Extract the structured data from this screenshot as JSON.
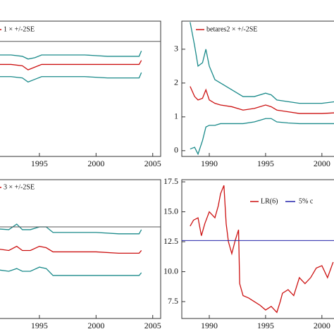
{
  "chart_data": [
    {
      "type": "line",
      "xlim": [
        1991.4,
        2005.7
      ],
      "ylim": [
        0,
        10
      ],
      "xticks": [
        1995,
        2000,
        2005
      ],
      "hline": {
        "value": 8.5,
        "color": "#555555"
      },
      "series": [
        {
          "name": "1 × +/-2SE",
          "color": "#cc1111",
          "x": [
            1991.4,
            1992.5,
            1993.5,
            1994,
            1994.6,
            1995.2,
            1997,
            1999,
            2001,
            2003.8,
            2004
          ],
          "values": [
            6.8,
            6.8,
            6.7,
            6.4,
            6.6,
            6.8,
            6.8,
            6.8,
            6.8,
            6.8,
            7.1
          ]
        },
        {
          "color": "#1a8a8a",
          "x": [
            1991.4,
            1992.5,
            1993.5,
            1994,
            1994.6,
            1995.2,
            1997,
            1999,
            2001,
            2003.8,
            2004
          ],
          "values": [
            7.5,
            7.5,
            7.4,
            7.2,
            7.3,
            7.5,
            7.5,
            7.5,
            7.4,
            7.4,
            7.8
          ]
        },
        {
          "color": "#1a8a8a",
          "x": [
            1991.4,
            1992.5,
            1993.5,
            1994,
            1994.6,
            1995.2,
            1997,
            1999,
            2001,
            2003.8,
            2004
          ],
          "values": [
            5.9,
            5.9,
            5.8,
            5.5,
            5.7,
            5.9,
            5.9,
            5.9,
            5.8,
            5.8,
            6.2
          ]
        }
      ]
    },
    {
      "type": "line",
      "xlim": [
        1987.56,
        2001.2
      ],
      "ylim": [
        -0.17,
        3.83
      ],
      "xticks": [
        1990,
        1995,
        2000
      ],
      "yticks": [
        0,
        1,
        2,
        3
      ],
      "series": [
        {
          "name": "betares2 × +/-2SE",
          "color": "#cc1111",
          "x": [
            1988.3,
            1988.7,
            1989,
            1989.4,
            1989.7,
            1990,
            1990.5,
            1991,
            1992,
            1993,
            1994,
            1995,
            1995.5,
            1996,
            1997,
            1998,
            2000,
            2001.2
          ],
          "values": [
            1.9,
            1.6,
            1.5,
            1.55,
            1.8,
            1.5,
            1.4,
            1.35,
            1.3,
            1.2,
            1.25,
            1.35,
            1.3,
            1.2,
            1.15,
            1.1,
            1.1,
            1.12
          ]
        },
        {
          "color": "#1a8a8a",
          "x": [
            1988.3,
            1988.7,
            1989,
            1989.4,
            1989.7,
            1990,
            1990.5,
            1991,
            1992,
            1993,
            1994,
            1995,
            1995.5,
            1996,
            1997,
            1998,
            2000,
            2001.2
          ],
          "values": [
            3.8,
            3.1,
            2.5,
            2.6,
            3.0,
            2.5,
            2.1,
            2.0,
            1.8,
            1.6,
            1.6,
            1.7,
            1.65,
            1.5,
            1.45,
            1.4,
            1.4,
            1.45
          ]
        },
        {
          "color": "#1a8a8a",
          "x": [
            1988.3,
            1988.7,
            1989,
            1989.4,
            1989.7,
            1990,
            1990.5,
            1991,
            1992,
            1993,
            1994,
            1995,
            1995.5,
            1996,
            1997,
            1998,
            2000,
            2001.2
          ],
          "values": [
            0.05,
            0.1,
            -0.1,
            0.3,
            0.7,
            0.75,
            0.75,
            0.8,
            0.8,
            0.8,
            0.85,
            0.95,
            0.95,
            0.85,
            0.82,
            0.8,
            0.8,
            0.8
          ]
        }
      ]
    },
    {
      "type": "line",
      "xlim": [
        1991.4,
        2005.7
      ],
      "ylim": [
        0,
        10
      ],
      "xticks": [
        1995,
        2000,
        2005
      ],
      "hline": {
        "value": 6.6,
        "color": "#555555"
      },
      "series": [
        {
          "name": "3 × +/-2SE",
          "color": "#cc1111",
          "x": [
            1991.4,
            1992.3,
            1993,
            1993.5,
            1994.2,
            1995,
            1995.6,
            1996.2,
            1998,
            2000,
            2002,
            2003.8,
            2004
          ],
          "values": [
            5.0,
            4.9,
            5.2,
            4.9,
            4.9,
            5.2,
            5.1,
            4.8,
            4.8,
            4.8,
            4.7,
            4.7,
            4.9
          ]
        },
        {
          "color": "#1a8a8a",
          "x": [
            1991.4,
            1992.3,
            1993,
            1993.5,
            1994.2,
            1995,
            1995.6,
            1996.2,
            1998,
            2000,
            2002,
            2003.8,
            2004
          ],
          "values": [
            6.45,
            6.4,
            6.8,
            6.4,
            6.4,
            6.6,
            6.6,
            6.2,
            6.2,
            6.2,
            6.1,
            6.1,
            6.4
          ]
        },
        {
          "color": "#1a8a8a",
          "x": [
            1991.4,
            1992.3,
            1993,
            1993.5,
            1994.2,
            1995,
            1995.6,
            1996.2,
            1998,
            2000,
            2002,
            2003.8,
            2004
          ],
          "values": [
            3.5,
            3.4,
            3.6,
            3.4,
            3.4,
            3.7,
            3.6,
            3.1,
            3.1,
            3.1,
            3.1,
            3.1,
            3.3
          ]
        }
      ]
    },
    {
      "type": "line",
      "xlim": [
        1987.56,
        2001.2
      ],
      "ylim": [
        6.09,
        17.68
      ],
      "xticks": [
        1990,
        1995,
        2000
      ],
      "yticks": [
        {
          "value": 7.5,
          "label": "7.5"
        },
        {
          "value": 10,
          "label": "10.0"
        },
        {
          "value": 12.5,
          "label": "12.5"
        },
        {
          "value": 15,
          "label": "15.0"
        },
        {
          "value": 17.5,
          "label": "17.5"
        }
      ],
      "hline": {
        "name": "5% c",
        "value": 12.6,
        "color": "#2222aa"
      },
      "series": [
        {
          "name": "LR(6)",
          "color": "#cc1111",
          "x": [
            1988.3,
            1988.6,
            1989,
            1989.3,
            1989.6,
            1990,
            1990.5,
            1990.8,
            1991,
            1991.3,
            1991.5,
            1991.7,
            1992,
            1992.3,
            1992.6,
            1992.7,
            1993,
            1993.5,
            1994,
            1994.5,
            1995,
            1995.5,
            1996,
            1996.3,
            1996.5,
            1997,
            1997.5,
            1998,
            1998.5,
            1999,
            1999.5,
            2000,
            2000.5,
            2001
          ],
          "values": [
            13.8,
            14.3,
            14.5,
            13.0,
            14.0,
            15.0,
            14.5,
            15.5,
            16.5,
            17.2,
            14.0,
            12.5,
            11.5,
            12.6,
            13.5,
            9.0,
            8.0,
            7.8,
            7.5,
            7.2,
            6.8,
            7.1,
            6.6,
            7.5,
            8.2,
            8.5,
            8.0,
            9.5,
            9.0,
            9.5,
            10.3,
            10.5,
            9.5,
            10.8
          ]
        }
      ]
    }
  ]
}
